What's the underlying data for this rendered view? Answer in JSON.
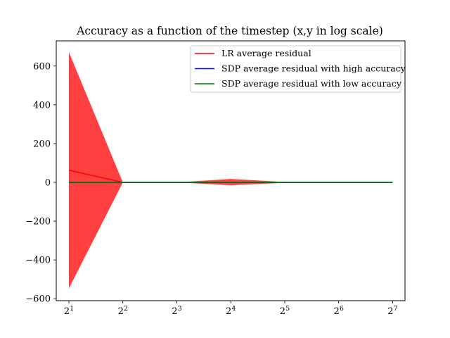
{
  "chart_data": {
    "type": "line",
    "title": "Accuracy as a function of the timestep (x,y in log scale)",
    "xlabel": "",
    "ylabel": "",
    "x_scale": "log2",
    "x": [
      2,
      4,
      8,
      16,
      32,
      64,
      128
    ],
    "x_tick_labels": [
      {
        "base": "2",
        "exp": "1"
      },
      {
        "base": "2",
        "exp": "2"
      },
      {
        "base": "2",
        "exp": "3"
      },
      {
        "base": "2",
        "exp": "4"
      },
      {
        "base": "2",
        "exp": "5"
      },
      {
        "base": "2",
        "exp": "6"
      },
      {
        "base": "2",
        "exp": "7"
      }
    ],
    "y_ticks": [
      -600,
      -400,
      -200,
      0,
      200,
      400,
      600
    ],
    "y_tick_labels": [
      "−600",
      "−400",
      "−200",
      "0",
      "200",
      "400",
      "600"
    ],
    "xlim": [
      1.7,
      150
    ],
    "ylim": [
      -610,
      730
    ],
    "grid": false,
    "legend_position": "top-right",
    "series": [
      {
        "name": "LR average residual",
        "color": "#ff0000",
        "values": [
          63,
          0,
          0,
          1,
          0,
          0,
          0
        ],
        "band_upper": [
          672,
          0,
          0,
          18,
          2,
          0,
          0
        ],
        "band_lower": [
          -547,
          0,
          0,
          -15,
          -2,
          0,
          0
        ],
        "band_color": "#ff0000",
        "band_opacity": 0.75
      },
      {
        "name": "SDP average residual with high accuracy",
        "color": "#0000ff",
        "values": [
          0,
          0,
          0,
          0,
          0,
          0,
          0
        ]
      },
      {
        "name": "SDP average residual with low accuracy",
        "color": "#008000",
        "values": [
          0,
          0,
          0,
          0,
          0,
          0,
          0
        ]
      }
    ]
  }
}
